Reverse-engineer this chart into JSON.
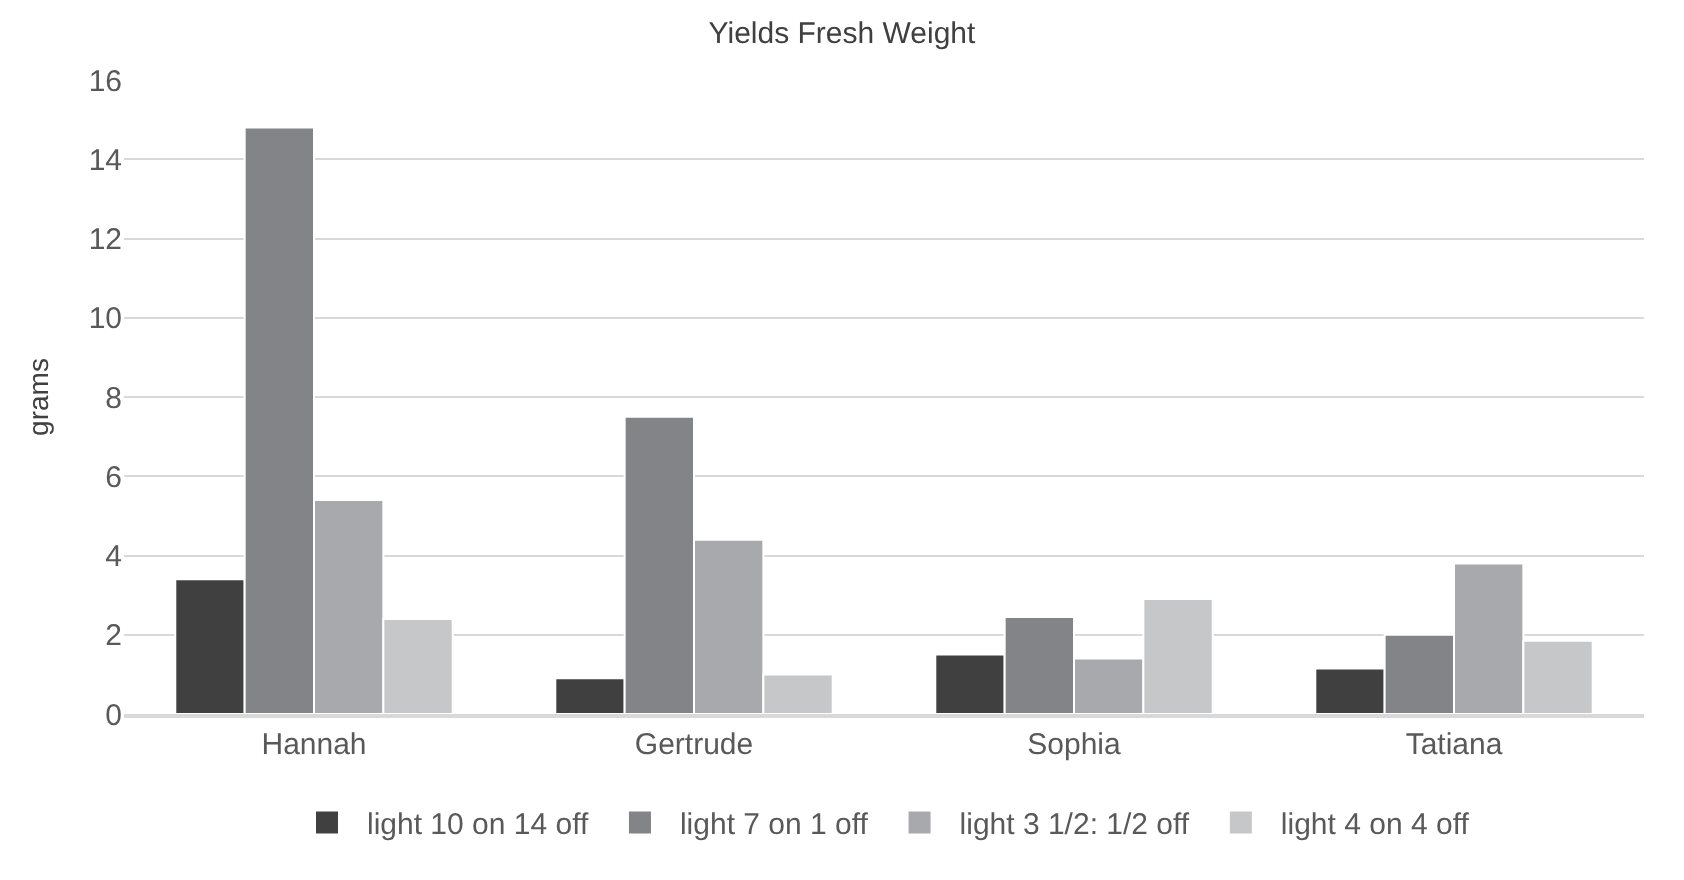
{
  "chart_data": {
    "type": "bar",
    "title": "Yields Fresh Weight",
    "ylabel": "grams",
    "categories": [
      "Hannah",
      "Gertrude",
      "Sophia",
      "Tatiana"
    ],
    "series": [
      {
        "name": "light 10 on 14 off",
        "color": "#404040",
        "values": [
          3.4,
          0.9,
          1.5,
          1.15
        ]
      },
      {
        "name": "light 7 on 1 off",
        "color": "#838487",
        "values": [
          14.8,
          7.5,
          2.45,
          2.0
        ]
      },
      {
        "name": "light 3 1/2: 1/2 off",
        "color": "#a8a9ac",
        "values": [
          5.4,
          4.4,
          1.4,
          3.8
        ]
      },
      {
        "name": "light 4 on 4 off",
        "color": "#c6c7c8",
        "values": [
          2.4,
          1.0,
          2.9,
          1.85
        ]
      }
    ],
    "ylim": [
      0,
      16
    ],
    "yticks": [
      0,
      2,
      4,
      6,
      8,
      10,
      12,
      14,
      16
    ],
    "grid": "y",
    "legend": "bottom"
  }
}
